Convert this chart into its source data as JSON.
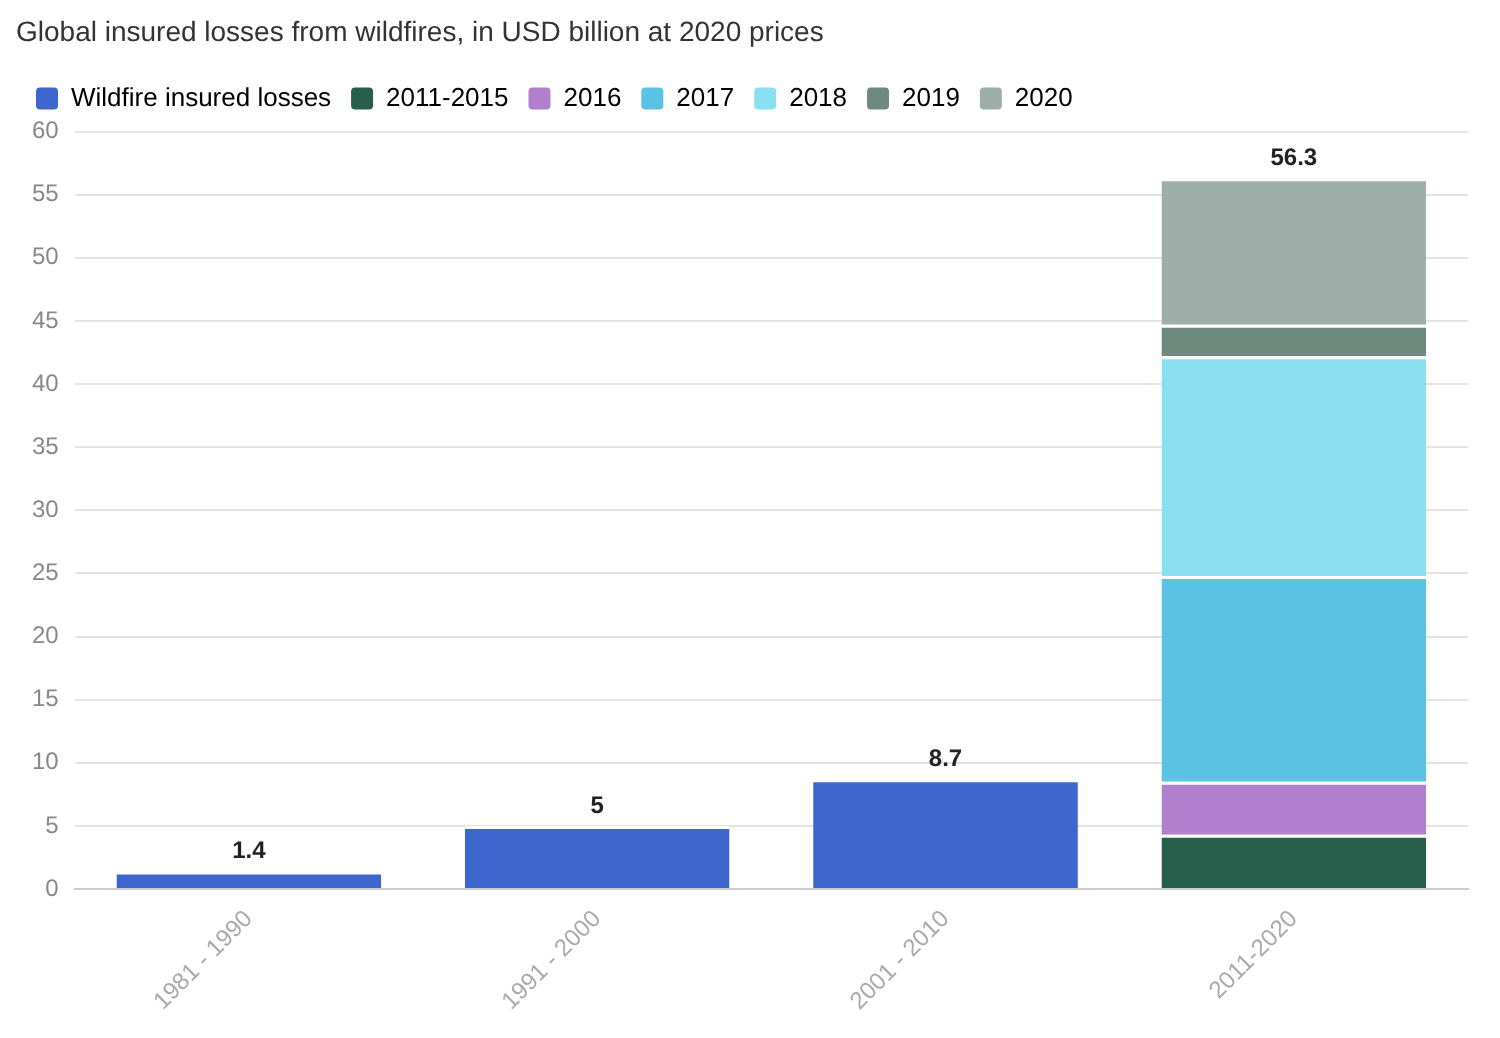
{
  "chart_data": {
    "type": "bar",
    "title": "Global insured losses from wildfires, in USD billion at 2020 prices",
    "categories": [
      "1981 - 1990",
      "1991 - 2000",
      "2001 - 2010",
      "2011-2020"
    ],
    "series": [
      {
        "name": "Wildfire insured losses",
        "color": "#3d66cf",
        "values": [
          1.4,
          5,
          8.7,
          null
        ]
      },
      {
        "name": "2011-2015",
        "color": "#275e4c",
        "values": [
          null,
          null,
          null,
          4.3
        ]
      },
      {
        "name": "2016",
        "color": "#b07fcd",
        "values": [
          null,
          null,
          null,
          4.2
        ]
      },
      {
        "name": "2017",
        "color": "#5bc2e3",
        "values": [
          null,
          null,
          null,
          16.3
        ]
      },
      {
        "name": "2018",
        "color": "#8ae0f0",
        "values": [
          null,
          null,
          null,
          17.4
        ]
      },
      {
        "name": "2019",
        "color": "#6e8a7e",
        "values": [
          null,
          null,
          null,
          2.5
        ]
      },
      {
        "name": "2020",
        "color": "#9eaea8",
        "values": [
          null,
          null,
          null,
          11.6
        ]
      }
    ],
    "stacked": true,
    "totals": [
      "1.4",
      "5",
      "8.7",
      "56.3"
    ],
    "ylim": [
      0,
      60
    ],
    "yticks": [
      0,
      5,
      10,
      15,
      20,
      25,
      30,
      35,
      40,
      45,
      50,
      55,
      60
    ],
    "grid": "y",
    "legend": "top left"
  }
}
